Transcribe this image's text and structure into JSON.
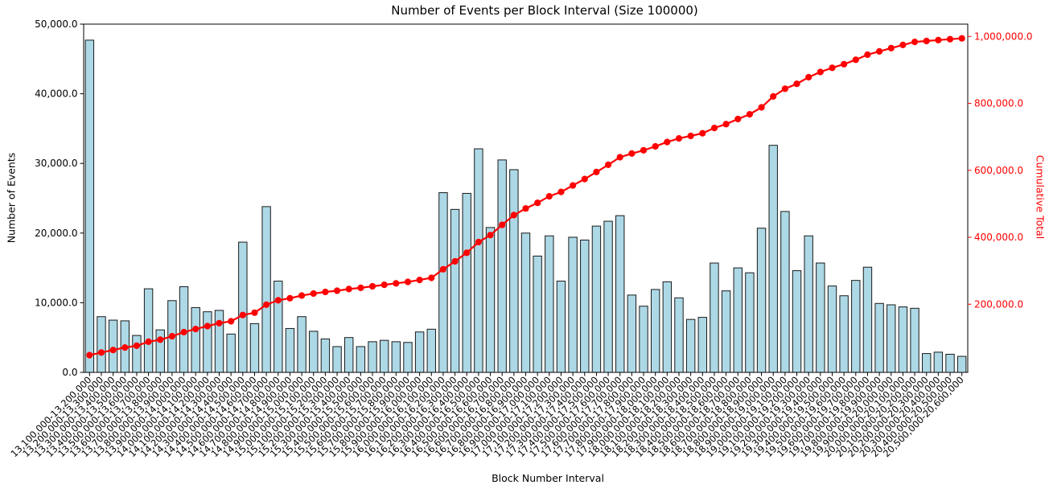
{
  "title": "Number of Events per Block Interval (Size 100000)",
  "axes": {
    "x_label": "Block Number Interval",
    "y_left_label": "Number of Events",
    "y_right_label": "Cumulative Total",
    "y_left_tick_labels": [
      "0.0",
      "10,000.0",
      "20,000.0",
      "30,000.0",
      "40,000.0",
      "50,000.0"
    ],
    "y_right_tick_labels": [
      "200,000.0",
      "400,000.0",
      "600,000.0",
      "800,000.0",
      "1,000,000.0"
    ]
  },
  "colors": {
    "background": "#ffffff",
    "bar_fill": "#add8e6",
    "bar_edge": "#1a1a1a",
    "line": "#ff0000",
    "right_axis": "#ff0000",
    "text": "#000000",
    "spine": "#000000"
  },
  "chart_data": {
    "type": "bar",
    "title": "Number of Events per Block Interval (Size 100000)",
    "xlabel": "Block Number Interval",
    "ylabel": "Number of Events",
    "ylabel_right": "Cumulative Total",
    "ylim_left": [
      0,
      50000
    ],
    "ylim_right": [
      0,
      1000000
    ],
    "grid": false,
    "legend": "none",
    "x_tick_rotation": 45,
    "left_tick_values": [
      0,
      10000,
      20000,
      30000,
      40000,
      50000
    ],
    "left_tick_labels": [
      "0.0",
      "10,000.0",
      "20,000.0",
      "30,000.0",
      "40,000.0",
      "50,000.0"
    ],
    "right_tick_values": [
      200000,
      400000,
      600000,
      800000,
      1000000
    ],
    "right_tick_labels": [
      "200,000.0",
      "400,000.0",
      "600,000.0",
      "800,000.0",
      "1,000,000.0"
    ],
    "categories": [
      "13,100,000-13,200,000",
      "13,200,000-13,300,000",
      "13,300,000-13,400,000",
      "13,400,000-13,500,000",
      "13,500,000-13,600,000",
      "13,600,000-13,700,000",
      "13,700,000-13,800,000",
      "13,800,000-13,900,000",
      "13,900,000-14,000,000",
      "14,000,000-14,100,000",
      "14,100,000-14,200,000",
      "14,200,000-14,300,000",
      "14,300,000-14,400,000",
      "14,400,000-14,500,000",
      "14,500,000-14,600,000",
      "14,600,000-14,700,000",
      "14,700,000-14,800,000",
      "14,800,000-14,900,000",
      "14,900,000-15,000,000",
      "15,000,000-15,100,000",
      "15,100,000-15,200,000",
      "15,200,000-15,300,000",
      "15,300,000-15,400,000",
      "15,400,000-15,500,000",
      "15,500,000-15,600,000",
      "15,600,000-15,700,000",
      "15,700,000-15,800,000",
      "15,800,000-15,900,000",
      "15,900,000-16,000,000",
      "16,000,000-16,100,000",
      "16,100,000-16,200,000",
      "16,200,000-16,300,000",
      "16,300,000-16,400,000",
      "16,400,000-16,500,000",
      "16,500,000-16,600,000",
      "16,600,000-16,700,000",
      "16,700,000-16,800,000",
      "16,800,000-16,900,000",
      "16,900,000-17,000,000",
      "17,000,000-17,100,000",
      "17,100,000-17,200,000",
      "17,200,000-17,300,000",
      "17,300,000-17,400,000",
      "17,400,000-17,500,000",
      "17,500,000-17,600,000",
      "17,600,000-17,700,000",
      "17,700,000-17,800,000",
      "17,800,000-17,900,000",
      "17,900,000-18,000,000",
      "18,000,000-18,100,000",
      "18,100,000-18,200,000",
      "18,200,000-18,300,000",
      "18,300,000-18,400,000",
      "18,400,000-18,500,000",
      "18,500,000-18,600,000",
      "18,600,000-18,700,000",
      "18,700,000-18,800,000",
      "18,800,000-18,900,000",
      "18,900,000-19,000,000",
      "19,000,000-19,100,000",
      "19,100,000-19,200,000",
      "19,200,000-19,300,000",
      "19,300,000-19,400,000",
      "19,400,000-19,500,000",
      "19,500,000-19,600,000",
      "19,600,000-19,700,000",
      "19,700,000-19,800,000",
      "19,800,000-19,900,000",
      "19,900,000-20,000,000",
      "20,000,000-20,100,000",
      "20,100,000-20,200,000",
      "20,200,000-20,300,000",
      "20,300,000-20,400,000",
      "20,400,000-20,500,000",
      "20,500,000-20,600,000"
    ],
    "series": [
      {
        "name": "Events per interval",
        "type": "bar",
        "axis": "left",
        "values": [
          47700,
          8000,
          7500,
          7400,
          5300,
          12000,
          6100,
          10300,
          12300,
          9300,
          8700,
          8900,
          5500,
          18700,
          7000,
          23800,
          13100,
          6300,
          8000,
          5900,
          4800,
          3700,
          5000,
          3700,
          4400,
          4600,
          4400,
          4300,
          5800,
          6200,
          25800,
          23400,
          25700,
          32100,
          20800,
          30500,
          29100,
          20000,
          16700,
          19600,
          13100,
          19400,
          19000,
          21000,
          21700,
          22500,
          11100,
          9500,
          11900,
          13000,
          10700,
          7600,
          7900,
          15700,
          11700,
          15000,
          14300,
          20700,
          32600,
          23100,
          14600,
          19600,
          15700,
          12400,
          11000,
          13200,
          15100,
          9900,
          9700,
          9400,
          9200,
          2700,
          2900,
          2600,
          2300
        ]
      },
      {
        "name": "Cumulative Total",
        "type": "line",
        "axis": "right",
        "values": [
          47700,
          55700,
          63200,
          70600,
          75900,
          87900,
          94000,
          104300,
          116600,
          125900,
          134600,
          143500,
          149000,
          167700,
          174700,
          198500,
          211600,
          217900,
          225900,
          231800,
          236600,
          240300,
          245300,
          249000,
          253400,
          258000,
          262400,
          266700,
          272500,
          278700,
          304500,
          327900,
          353600,
          385700,
          406500,
          437000,
          466100,
          486100,
          502800,
          522400,
          535500,
          554900,
          573900,
          594900,
          616600,
          639100,
          650200,
          659700,
          671600,
          684600,
          695300,
          702900,
          710800,
          726500,
          738200,
          753200,
          767500,
          788200,
          820800,
          843900,
          858500,
          878100,
          893800,
          906200,
          917200,
          930400,
          945500,
          955400,
          965100,
          974500,
          983700,
          986400,
          989300,
          991900,
          994200
        ]
      }
    ]
  }
}
